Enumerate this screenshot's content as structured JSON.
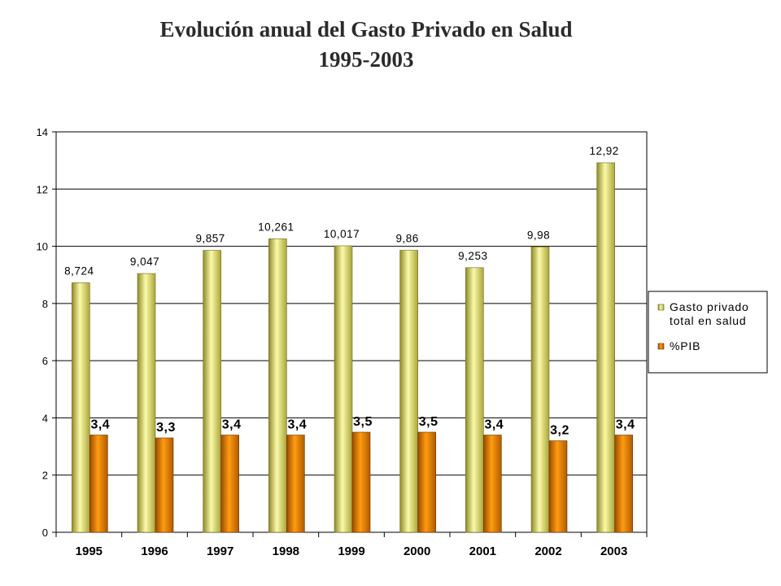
{
  "title": {
    "line1": "Evolución anual del Gasto Privado en Salud",
    "line2": "1995-2003"
  },
  "colors": {
    "gold_series": "#e3e07a",
    "orange_series": "#f08c00",
    "gridline": "#000000"
  },
  "chart_data": {
    "type": "bar",
    "categories": [
      "1995",
      "1996",
      "1997",
      "1998",
      "1999",
      "2000",
      "2001",
      "2002",
      "2003"
    ],
    "series": [
      {
        "name": "Gasto privado total en salud",
        "values": [
          8.724,
          9.047,
          9.857,
          10.261,
          10.017,
          9.86,
          9.253,
          9.98,
          12.92
        ],
        "labels": [
          "8,724",
          "9,047",
          "9,857",
          "10,261",
          "10,017",
          "9,86",
          "9,253",
          "9,98",
          "12,92"
        ]
      },
      {
        "name": "%PIB",
        "values": [
          3.4,
          3.3,
          3.4,
          3.4,
          3.5,
          3.5,
          3.4,
          3.2,
          3.4
        ],
        "labels": [
          "3,4",
          "3,3",
          "3,4",
          "3,4",
          "3,5",
          "3,5",
          "3,4",
          "3,2",
          "3,4"
        ]
      }
    ],
    "ylim": [
      0,
      14
    ],
    "yticks": [
      0,
      2,
      4,
      6,
      8,
      10,
      12,
      14
    ],
    "grid": true,
    "legend_position": "right"
  }
}
